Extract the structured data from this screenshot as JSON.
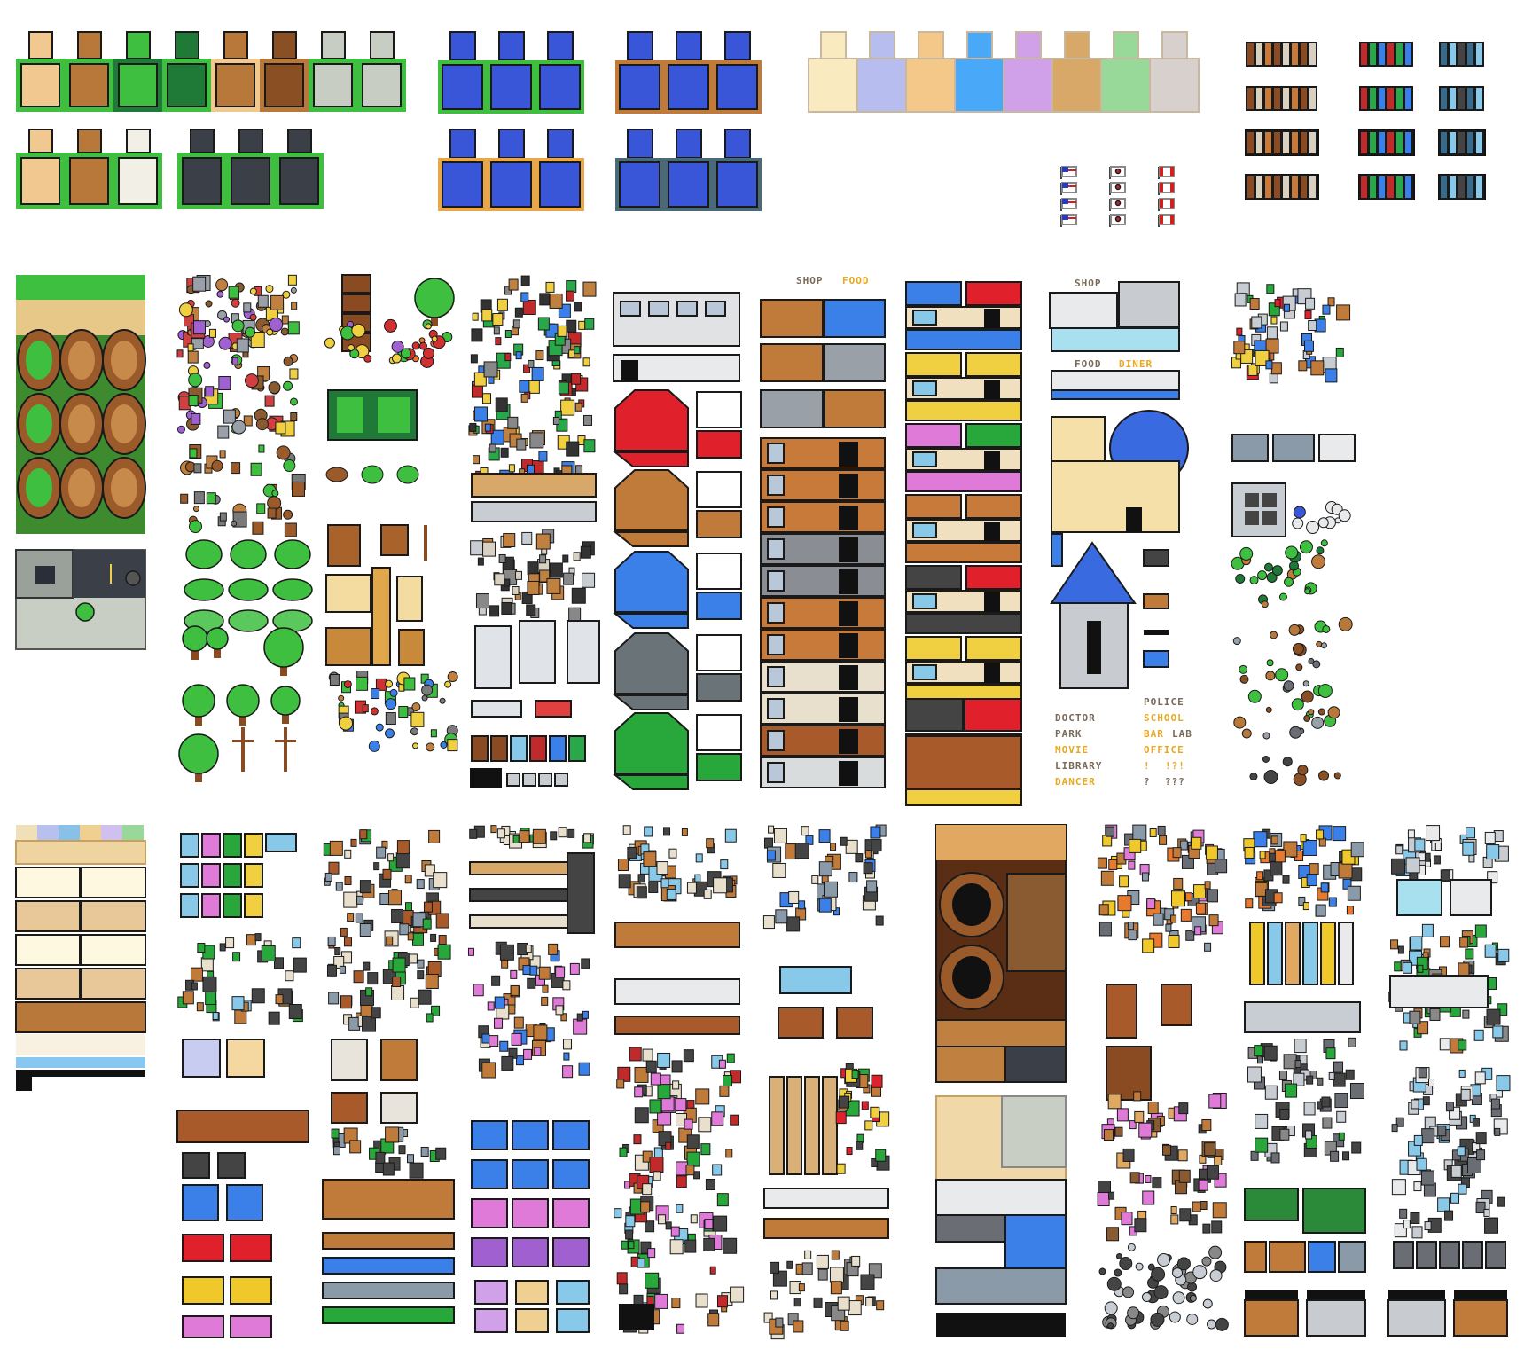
{
  "palette": {
    "grass": "#3fbf3f",
    "grass_dark": "#1e7a36",
    "sand": "#f0c890",
    "dirt": "#b8783a",
    "dirt_dark": "#8a4f22",
    "stone": "#c8cdc4",
    "water": "#3a56d8",
    "water_dark": "#2a3fa8",
    "wood": "#c07a3a",
    "roof_red": "#e0202a",
    "roof_blue": "#3a80e8",
    "roof_grey": "#6a7478",
    "roof_green": "#28a83a",
    "asphalt": "#3a3f48",
    "cream": "#f3e6b8",
    "outline": "#1a1a1a",
    "pink": "#e07ad8",
    "yellow": "#f0c82a"
  },
  "text_colors": {
    "shop": "#7a6a5a",
    "food": "#f0b020",
    "diner": "#f0b020",
    "doctor": "#7a6a5a",
    "school": "#f0b020",
    "police": "#7a6a5a",
    "park": "#7a6a5a",
    "bar": "#f0b020",
    "lab": "#7a6a5a",
    "movie": "#f0b020",
    "office": "#f0b020",
    "library": "#7a6a5a",
    "dancer": "#f0b020"
  },
  "signs": {
    "shop_a": "SHOP",
    "food_a": "FOOD",
    "shop_b": "SHOP",
    "food_b": "FOOD",
    "diner": "DINER",
    "doctor": "DOCTOR",
    "police": "POLICE",
    "park": "PARK",
    "school": "SCHOOL",
    "bar": "BAR",
    "lab": "LAB",
    "movie": "MOVIE",
    "office": "OFFICE",
    "library": "LIBRARY",
    "dancer": "DANCER",
    "mark_1": "!",
    "mark_2": "!?!",
    "mark_3": "?",
    "mark_4": "???"
  },
  "icons": [
    "grass-edge-tile-icon",
    "water-tile-icon",
    "floor-swatch-icon",
    "door-icon",
    "flag-icon",
    "cliff-icon",
    "tree-icon",
    "bush-icon",
    "rock-icon",
    "crop-icon",
    "signpost-icon",
    "building-facade-icon",
    "roof-icon",
    "church-icon",
    "dome-icon",
    "sofa-icon",
    "bed-icon",
    "bookshelf-icon",
    "computer-icon",
    "crystal-icon",
    "rug-icon",
    "garage-door-icon"
  ]
}
